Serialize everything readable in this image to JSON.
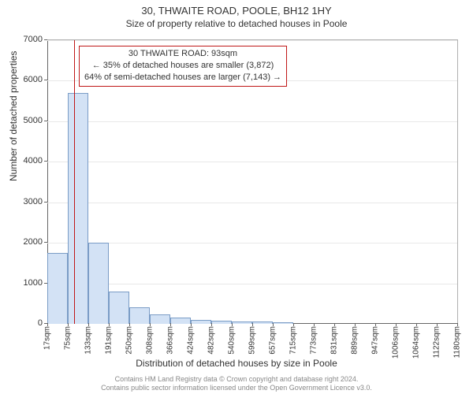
{
  "chart": {
    "type": "histogram",
    "title_line1": "30, THWAITE ROAD, POOLE, BH12 1HY",
    "title_line2": "Size of property relative to detached houses in Poole",
    "xlabel": "Distribution of detached houses by size in Poole",
    "ylabel": "Number of detached properties",
    "background_color": "#ffffff",
    "grid_color": "#e8e8e8",
    "axis_color": "#666666",
    "bar_fill": "#d3e2f5",
    "bar_stroke": "#7a9cc6",
    "marker_color": "#c01818",
    "callout_border": "#c01818",
    "ylim": [
      0,
      7000
    ],
    "ytick_step": 1000,
    "xtick_labels": [
      "17sqm",
      "75sqm",
      "133sqm",
      "191sqm",
      "250sqm",
      "308sqm",
      "366sqm",
      "424sqm",
      "482sqm",
      "540sqm",
      "599sqm",
      "657sqm",
      "715sqm",
      "773sqm",
      "831sqm",
      "889sqm",
      "947sqm",
      "1006sqm",
      "1064sqm",
      "1122sqm",
      "1180sqm"
    ],
    "values": [
      1750,
      5700,
      2000,
      790,
      400,
      230,
      150,
      100,
      70,
      60,
      50,
      40,
      0,
      0,
      0,
      0,
      0,
      0,
      0,
      0
    ],
    "marker_value_sqm": 93,
    "x_min_sqm": 17,
    "x_max_sqm": 1180,
    "callout": {
      "line1": "30 THWAITE ROAD: 93sqm",
      "line2": "← 35% of detached houses are smaller (3,872)",
      "line3": "64% of semi-detached houses are larger (7,143) →"
    },
    "footer_line1": "Contains HM Land Registry data © Crown copyright and database right 2024.",
    "footer_line2": "Contains public sector information licensed under the Open Government Licence v3.0.",
    "title_fontsize": 13,
    "label_fontsize": 12,
    "tick_fontsize": 11,
    "footer_fontsize": 9
  }
}
